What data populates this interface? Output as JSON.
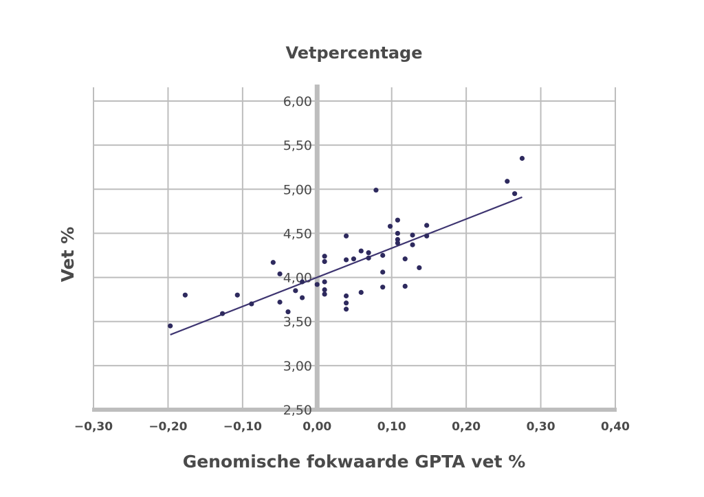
{
  "chart_data": {
    "type": "scatter",
    "title": "Vetpercentage",
    "xlabel": "Genomische fokwaarde GPTA vet %",
    "ylabel": "Vet %",
    "xlim": [
      -0.3,
      0.4
    ],
    "ylim": [
      2.5,
      6.0
    ],
    "x_ticks": [
      "−0,30",
      "−0,20",
      "−0,10",
      "0,00",
      "0,10",
      "0,20",
      "0,30",
      "0,40"
    ],
    "y_ticks": [
      "2,50",
      "3,00",
      "3,50",
      "4,00",
      "4,50",
      "5,00",
      "5,50",
      "6,00"
    ],
    "grid": true,
    "point_color": "#2e2a5e",
    "line_color": "#3d3470",
    "grid_color": "#bdbdbd",
    "axis_color": "#bdbdbd",
    "points": [
      {
        "x": -0.197,
        "y": 3.45
      },
      {
        "x": -0.177,
        "y": 3.8
      },
      {
        "x": -0.127,
        "y": 3.59
      },
      {
        "x": -0.107,
        "y": 3.8
      },
      {
        "x": -0.088,
        "y": 3.7
      },
      {
        "x": -0.059,
        "y": 4.17
      },
      {
        "x": -0.05,
        "y": 4.04
      },
      {
        "x": -0.05,
        "y": 3.72
      },
      {
        "x": -0.039,
        "y": 3.61
      },
      {
        "x": -0.029,
        "y": 3.85
      },
      {
        "x": -0.02,
        "y": 3.77
      },
      {
        "x": -0.02,
        "y": 3.95
      },
      {
        "x": 0.0,
        "y": 3.92
      },
      {
        "x": 0.01,
        "y": 4.24
      },
      {
        "x": 0.01,
        "y": 4.18
      },
      {
        "x": 0.01,
        "y": 3.95
      },
      {
        "x": 0.01,
        "y": 3.86
      },
      {
        "x": 0.01,
        "y": 3.81
      },
      {
        "x": 0.039,
        "y": 4.47
      },
      {
        "x": 0.039,
        "y": 4.2
      },
      {
        "x": 0.039,
        "y": 3.79
      },
      {
        "x": 0.039,
        "y": 3.71
      },
      {
        "x": 0.039,
        "y": 3.64
      },
      {
        "x": 0.049,
        "y": 4.21
      },
      {
        "x": 0.059,
        "y": 4.3
      },
      {
        "x": 0.059,
        "y": 3.83
      },
      {
        "x": 0.069,
        "y": 4.28
      },
      {
        "x": 0.069,
        "y": 4.22
      },
      {
        "x": 0.079,
        "y": 4.99
      },
      {
        "x": 0.088,
        "y": 4.25
      },
      {
        "x": 0.088,
        "y": 4.06
      },
      {
        "x": 0.088,
        "y": 3.89
      },
      {
        "x": 0.098,
        "y": 4.58
      },
      {
        "x": 0.108,
        "y": 4.65
      },
      {
        "x": 0.108,
        "y": 4.5
      },
      {
        "x": 0.108,
        "y": 4.43
      },
      {
        "x": 0.108,
        "y": 4.39
      },
      {
        "x": 0.118,
        "y": 4.21
      },
      {
        "x": 0.118,
        "y": 3.9
      },
      {
        "x": 0.128,
        "y": 4.48
      },
      {
        "x": 0.128,
        "y": 4.37
      },
      {
        "x": 0.137,
        "y": 4.11
      },
      {
        "x": 0.147,
        "y": 4.59
      },
      {
        "x": 0.147,
        "y": 4.47
      },
      {
        "x": 0.255,
        "y": 5.09
      },
      {
        "x": 0.265,
        "y": 4.95
      },
      {
        "x": 0.275,
        "y": 5.35
      }
    ],
    "trendline": {
      "x": [
        -0.197,
        0.275
      ],
      "y": [
        3.35,
        4.91
      ]
    }
  }
}
